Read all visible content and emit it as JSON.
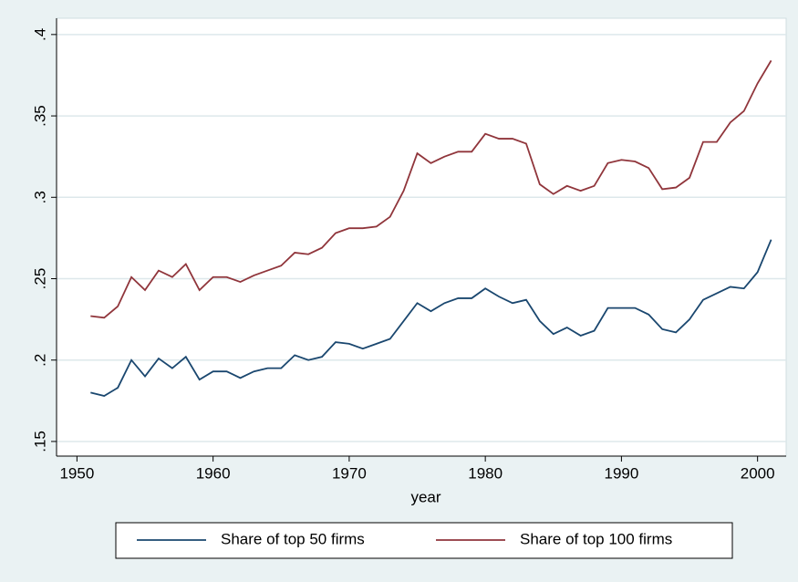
{
  "chart_data": {
    "type": "line",
    "x_label": "year",
    "x": [
      1951,
      1952,
      1953,
      1954,
      1955,
      1956,
      1957,
      1958,
      1959,
      1960,
      1961,
      1962,
      1963,
      1964,
      1965,
      1966,
      1967,
      1968,
      1969,
      1970,
      1971,
      1972,
      1973,
      1974,
      1975,
      1976,
      1977,
      1978,
      1979,
      1980,
      1981,
      1982,
      1983,
      1984,
      1985,
      1986,
      1987,
      1988,
      1989,
      1990,
      1991,
      1992,
      1993,
      1994,
      1995,
      1996,
      1997,
      1998,
      1999,
      2000,
      2001
    ],
    "series": [
      {
        "name": "Share of top 50 firms",
        "color": "#1a476f",
        "values": [
          0.18,
          0.178,
          0.183,
          0.2,
          0.19,
          0.201,
          0.195,
          0.202,
          0.188,
          0.193,
          0.193,
          0.189,
          0.193,
          0.195,
          0.195,
          0.203,
          0.2,
          0.202,
          0.211,
          0.21,
          0.207,
          0.21,
          0.213,
          0.224,
          0.235,
          0.23,
          0.235,
          0.238,
          0.238,
          0.244,
          0.239,
          0.235,
          0.237,
          0.224,
          0.216,
          0.22,
          0.215,
          0.218,
          0.232,
          0.232,
          0.232,
          0.228,
          0.219,
          0.217,
          0.225,
          0.237,
          0.241,
          0.245,
          0.244,
          0.254,
          0.274
        ]
      },
      {
        "name": "Share of top 100 firms",
        "color": "#90353b",
        "values": [
          0.227,
          0.226,
          0.233,
          0.251,
          0.243,
          0.255,
          0.251,
          0.259,
          0.243,
          0.251,
          0.251,
          0.248,
          0.252,
          0.255,
          0.258,
          0.266,
          0.265,
          0.269,
          0.278,
          0.281,
          0.281,
          0.282,
          0.288,
          0.304,
          0.327,
          0.321,
          0.325,
          0.328,
          0.328,
          0.339,
          0.336,
          0.336,
          0.333,
          0.308,
          0.302,
          0.307,
          0.304,
          0.307,
          0.321,
          0.323,
          0.322,
          0.318,
          0.305,
          0.306,
          0.312,
          0.334,
          0.334,
          0.346,
          0.353,
          0.37,
          0.384
        ]
      }
    ],
    "xlim": [
      1948.5,
      2002.1
    ],
    "xticks": [
      1950,
      1960,
      1970,
      1980,
      1990,
      2000
    ],
    "ylim": [
      0.141,
      0.41
    ],
    "yticks": [
      {
        "value": 0.15,
        "label": ".15"
      },
      {
        "value": 0.2,
        "label": ".2"
      },
      {
        "value": 0.25,
        "label": ".25"
      },
      {
        "value": 0.3,
        "label": ".3"
      },
      {
        "value": 0.35,
        "label": ".35"
      },
      {
        "value": 0.4,
        "label": ".4"
      }
    ],
    "grid": true,
    "legend": "bottom"
  }
}
